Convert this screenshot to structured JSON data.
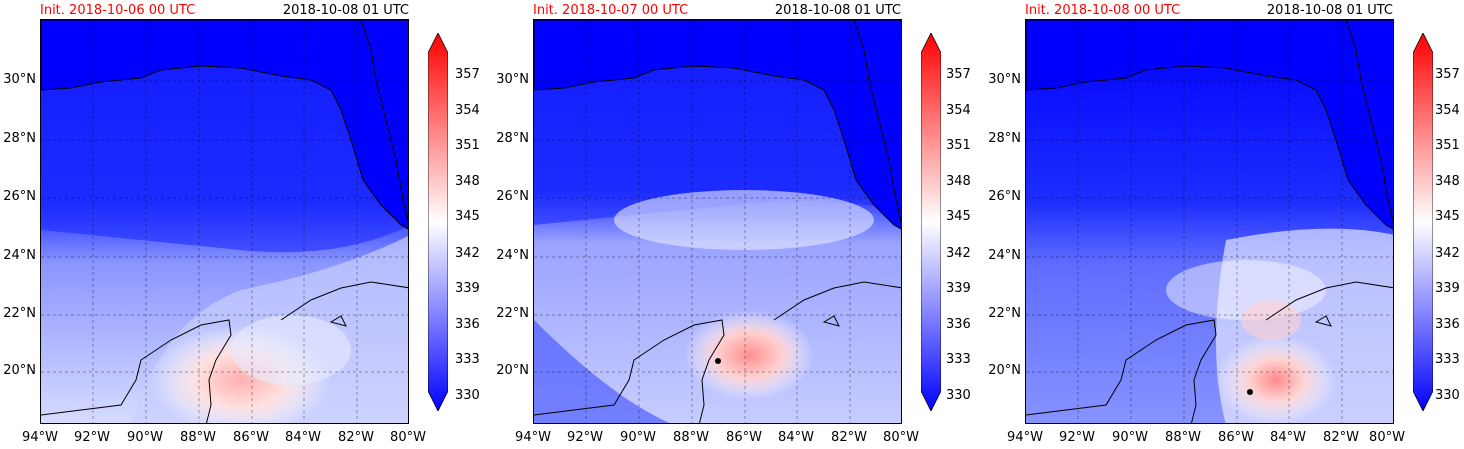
{
  "colors": {
    "low": "#0000ff",
    "mid": "#ffffff",
    "high": "#ff0000",
    "init_text": "#ff0000",
    "coast": "#000000"
  },
  "colorbar": {
    "ticks": [
      "357",
      "354",
      "351",
      "348",
      "345",
      "342",
      "339",
      "336",
      "333",
      "330"
    ],
    "min": 329,
    "max": 359,
    "extend": "both"
  },
  "axes": {
    "lon_labels": [
      "94°W",
      "92°W",
      "90°W",
      "88°W",
      "86°W",
      "84°W",
      "82°W",
      "80°W"
    ],
    "lat_labels": [
      "30°N",
      "28°N",
      "26°N",
      "24°N",
      "22°N",
      "20°N"
    ],
    "gridlines": "dashed"
  },
  "panels": [
    {
      "init": "Init. 2018-10-06 00 UTC",
      "valid": "2018-10-08 01 UTC"
    },
    {
      "init": "Init. 2018-10-07 00 UTC",
      "valid": "2018-10-08 01 UTC",
      "storm_marker": {
        "lon": -87.0,
        "lat": 20.3
      }
    },
    {
      "init": "Init. 2018-10-08 00 UTC",
      "valid": "2018-10-08 01 UTC",
      "storm_marker": {
        "lon": -85.5,
        "lat": 19.2
      }
    }
  ]
}
